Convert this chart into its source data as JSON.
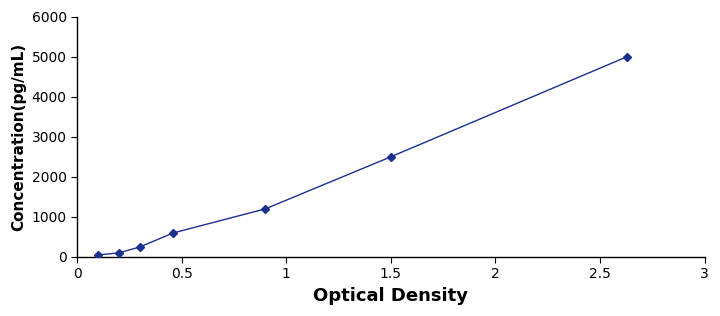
{
  "x": [
    0.1,
    0.2,
    0.3,
    0.46,
    0.9,
    1.5,
    2.63
  ],
  "y": [
    50,
    100,
    250,
    600,
    1200,
    2500,
    5000
  ],
  "line_color": "#1a2f8f",
  "marker": "D",
  "marker_size": 4,
  "linestyle": "-",
  "linewidth": 1.0,
  "xlabel": "Optical Density",
  "ylabel": "Concentration(pg/mL)",
  "xlim": [
    0,
    3
  ],
  "ylim": [
    0,
    6000
  ],
  "xticks": [
    0,
    0.5,
    1,
    1.5,
    2,
    2.5,
    3
  ],
  "yticks": [
    0,
    1000,
    2000,
    3000,
    4000,
    5000,
    6000
  ],
  "xlabel_fontsize": 13,
  "ylabel_fontsize": 11,
  "tick_fontsize": 10,
  "background_color": "#ffffff",
  "plot_bg_color": "#ffffff",
  "spine_color": "#000000",
  "label_fontweight": "bold"
}
